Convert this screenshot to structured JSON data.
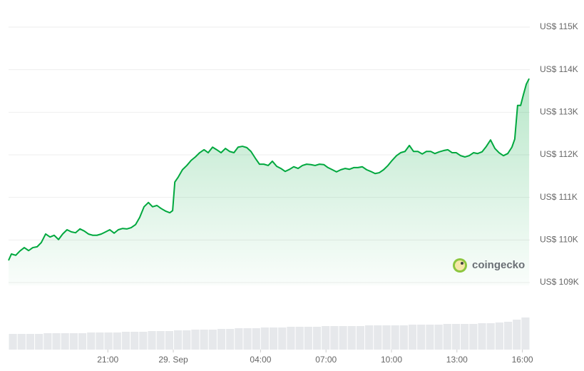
{
  "chart_data": {
    "type": "line",
    "x": [
      -7.55,
      -7.42,
      -7.22,
      -7.03,
      -6.83,
      -6.63,
      -6.44,
      -6.24,
      -6.05,
      -5.85,
      -5.65,
      -5.46,
      -5.26,
      -5.07,
      -4.87,
      -4.67,
      -4.48,
      -4.28,
      -4.08,
      -3.89,
      -3.69,
      -3.5,
      -3.3,
      -3.1,
      -2.91,
      -2.71,
      -2.52,
      -2.32,
      -2.12,
      -1.93,
      -1.73,
      -1.54,
      -1.34,
      -1.14,
      -0.95,
      -0.75,
      -0.56,
      -0.36,
      -0.16,
      -0.03,
      0.07,
      0.23,
      0.42,
      0.62,
      0.82,
      1.01,
      1.21,
      1.41,
      1.6,
      1.8,
      1.99,
      2.19,
      2.39,
      2.58,
      2.78,
      2.97,
      3.17,
      3.37,
      3.56,
      3.76,
      3.95,
      4.15,
      4.35,
      4.54,
      4.74,
      4.93,
      5.13,
      5.33,
      5.52,
      5.72,
      5.92,
      6.11,
      6.31,
      6.5,
      6.7,
      6.9,
      7.09,
      7.29,
      7.48,
      7.68,
      7.88,
      8.07,
      8.27,
      8.46,
      8.66,
      8.86,
      9.05,
      9.25,
      9.44,
      9.64,
      9.84,
      10.03,
      10.23,
      10.42,
      10.62,
      10.82,
      11.01,
      11.21,
      11.41,
      11.6,
      11.8,
      11.99,
      12.19,
      12.39,
      12.58,
      12.78,
      12.97,
      13.17,
      13.37,
      13.56,
      13.76,
      13.95,
      14.15,
      14.35,
      14.54,
      14.74,
      14.93,
      15.13,
      15.33,
      15.52,
      15.65,
      15.78,
      15.92,
      16.05,
      16.18,
      16.31
    ],
    "series": [
      {
        "color": "#00a83e",
        "values": [
          109520,
          109670,
          109640,
          109740,
          109820,
          109750,
          109820,
          109840,
          109940,
          110140,
          110070,
          110110,
          110010,
          110140,
          110240,
          110190,
          110170,
          110260,
          110210,
          110140,
          110110,
          110110,
          110140,
          110190,
          110240,
          110160,
          110240,
          110270,
          110260,
          110290,
          110360,
          110530,
          110780,
          110880,
          110780,
          110810,
          110740,
          110680,
          110640,
          110690,
          111360,
          111480,
          111650,
          111750,
          111870,
          111950,
          112050,
          112120,
          112050,
          112180,
          112120,
          112050,
          112150,
          112080,
          112050,
          112180,
          112200,
          112170,
          112080,
          111920,
          111780,
          111780,
          111750,
          111850,
          111730,
          111680,
          111610,
          111660,
          111720,
          111680,
          111750,
          111780,
          111770,
          111750,
          111780,
          111770,
          111700,
          111650,
          111600,
          111650,
          111680,
          111660,
          111700,
          111700,
          111720,
          111650,
          111610,
          111560,
          111580,
          111650,
          111750,
          111870,
          111980,
          112050,
          112080,
          112220,
          112080,
          112080,
          112020,
          112080,
          112080,
          112030,
          112070,
          112100,
          112120,
          112050,
          112050,
          111980,
          111950,
          111980,
          112050,
          112030,
          112070,
          112200,
          112350,
          112150,
          112050,
          111980,
          112030,
          112180,
          112370,
          113160,
          113160,
          113420,
          113660,
          113790
        ]
      }
    ],
    "xlim": [
      -7.55,
      16.34
    ],
    "xticks": [
      {
        "value": -3,
        "label": "21:00"
      },
      {
        "value": 0,
        "label": "29. Sep"
      },
      {
        "value": 4,
        "label": "04:00"
      },
      {
        "value": 7,
        "label": "07:00"
      },
      {
        "value": 10,
        "label": "10:00"
      },
      {
        "value": 13,
        "label": "13:00"
      },
      {
        "value": 16,
        "label": "16:00"
      }
    ],
    "ylim": [
      109000,
      115000
    ],
    "yticks": [
      {
        "value": 109000,
        "label": "US$ 109K"
      },
      {
        "value": 110000,
        "label": "US$ 110K"
      },
      {
        "value": 111000,
        "label": "US$ 111K"
      },
      {
        "value": 112000,
        "label": "US$ 112K"
      },
      {
        "value": 113000,
        "label": "US$ 113K"
      },
      {
        "value": 114000,
        "label": "US$ 114K"
      },
      {
        "value": 115000,
        "label": "US$ 115K"
      }
    ],
    "grid": true,
    "volume": {
      "color": "#e6e8eb",
      "values": [
        22,
        22,
        22,
        22,
        23,
        23,
        23,
        23,
        23,
        24,
        24,
        24,
        24,
        25,
        25,
        25,
        26,
        26,
        26,
        27,
        27,
        28,
        28,
        28,
        29,
        29,
        30,
        30,
        30,
        31,
        31,
        31,
        32,
        32,
        32,
        32,
        33,
        33,
        33,
        33,
        33,
        34,
        34,
        34,
        34,
        34,
        35,
        35,
        35,
        35,
        36,
        36,
        36,
        36,
        37,
        37,
        38,
        39,
        42,
        45
      ]
    },
    "watermark": "coingecko"
  }
}
